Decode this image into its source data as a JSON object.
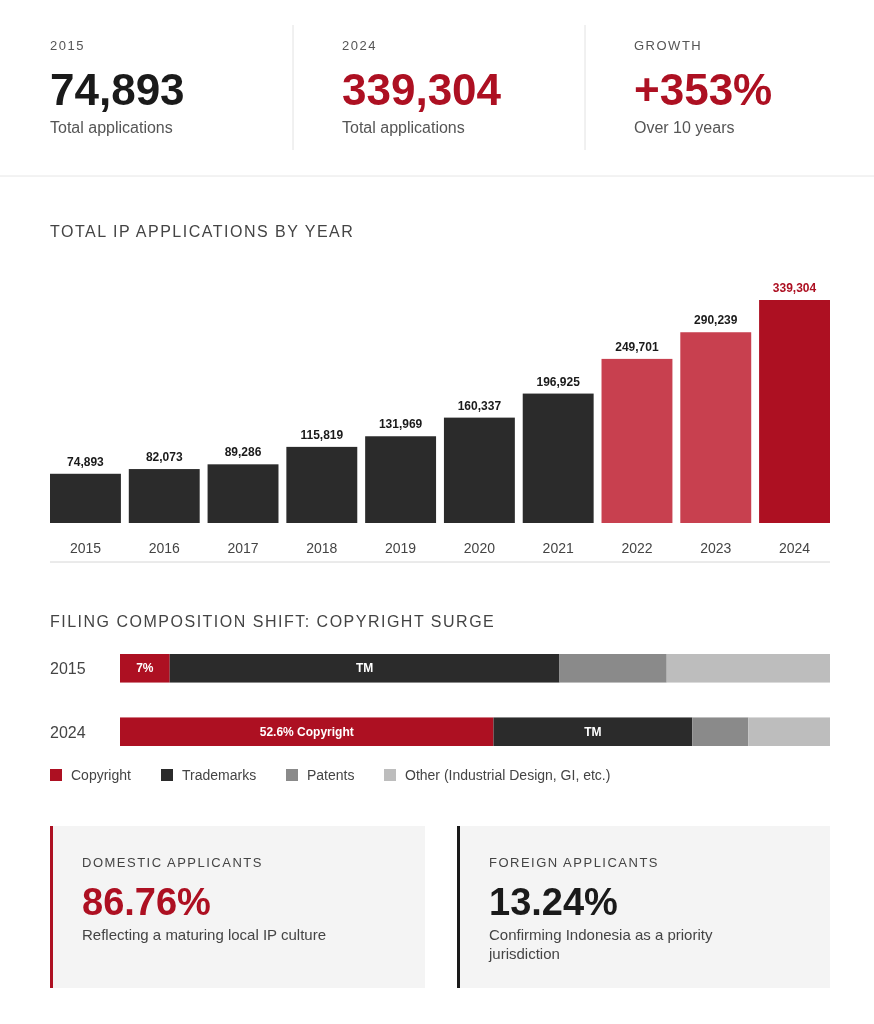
{
  "chart_data": [
    {
      "type": "other",
      "annotations": [
        "2015",
        "74,893",
        "Total applications",
        "2024",
        "339,304",
        "Total applications",
        "GROWTH",
        "+353%",
        "Over 10 years"
      ],
      "colors": [
        "#1a1a1a",
        "#ad1022",
        "#ad1022"
      ]
    },
    {
      "type": "bar",
      "title": "TOTAL IP APPLICATIONS BY YEAR",
      "categories": [
        "2015",
        "2016",
        "2017",
        "2018",
        "2019",
        "2020",
        "2021",
        "2022",
        "2023",
        "2024"
      ],
      "values": [
        74893,
        82073,
        89286,
        115819,
        131969,
        160337,
        196925,
        249701,
        290239,
        339304
      ],
      "colors": [
        "#2b2b2b",
        "#2b2b2b",
        "#2b2b2b",
        "#2b2b2b",
        "#2b2b2b",
        "#2b2b2b",
        "#2b2b2b",
        "#c8404f",
        "#c8404f",
        "#ad1022"
      ],
      "value_labels": [
        "74,893",
        "82,073",
        "89,286",
        "115,819",
        "131,969",
        "160,337",
        "196,925",
        "249,701",
        "290,239",
        "339,304"
      ]
    },
    {
      "type": "bar",
      "title": "FILING COMPOSITION SHIFT: COPYRIGHT SURGE",
      "orientation": "horizontal",
      "stacked": true,
      "legend": "bottom",
      "categories": [
        "2015",
        "2024"
      ],
      "series": [
        {
          "name": "Copyright",
          "color": "#ad1022",
          "values": [
            7,
            52.6
          ],
          "value_labels": [
            "7%",
            "52.6% Copyright"
          ]
        },
        {
          "name": "Trademarks",
          "color": "#2b2b2b",
          "values": [
            54.9,
            28.0
          ],
          "value_labels": [
            "TM",
            "TM"
          ]
        },
        {
          "name": "Patents",
          "color": "#8a8a8a",
          "values": [
            15.1,
            7.9
          ]
        },
        {
          "name": "Other (Industrial Design, GI, etc.)",
          "color": "#bdbdbd",
          "values": [
            23,
            11.5
          ]
        }
      ]
    },
    {
      "type": "other",
      "annotations": [
        "DOMESTIC APPLICANTS",
        "86.76%",
        "Reflecting a maturing local IP culture",
        "FOREIGN APPLICANTS",
        "13.24%",
        "Confirming Indonesia as a priority jurisdiction"
      ],
      "colors": [
        "#ad1022",
        "#1a1a1a"
      ]
    }
  ]
}
